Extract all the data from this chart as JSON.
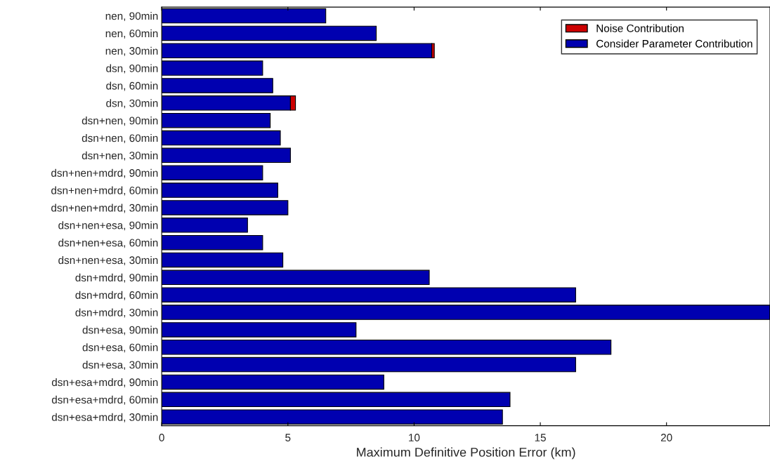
{
  "chart_data": {
    "type": "bar",
    "orientation": "horizontal",
    "stacked": true,
    "xlabel": "Maximum Definitive Position Error (km)",
    "categories": [
      "nen, 90min",
      "nen, 60min",
      "nen, 30min",
      "dsn, 90min",
      "dsn, 60min",
      "dsn, 30min",
      "dsn+nen, 90min",
      "dsn+nen, 60min",
      "dsn+nen, 30min",
      "dsn+nen+mdrd, 90min",
      "dsn+nen+mdrd, 60min",
      "dsn+nen+mdrd, 30min",
      "dsn+nen+esa, 90min",
      "dsn+nen+esa, 60min",
      "dsn+nen+esa, 30min",
      "dsn+mdrd, 90min",
      "dsn+mdrd, 60min",
      "dsn+mdrd, 30min",
      "dsn+esa, 90min",
      "dsn+esa, 60min",
      "dsn+esa, 30min",
      "dsn+esa+mdrd, 90min",
      "dsn+esa+mdrd, 60min",
      "dsn+esa+mdrd, 30min"
    ],
    "series": [
      {
        "name": "Consider Parameter Contribution",
        "color": "#0000b0",
        "values": [
          6.5,
          8.5,
          10.7,
          4.0,
          4.4,
          5.1,
          4.3,
          4.7,
          5.1,
          4.0,
          4.6,
          5.0,
          3.4,
          4.0,
          4.8,
          10.6,
          16.4,
          24.1,
          7.7,
          17.8,
          16.4,
          8.8,
          13.8,
          13.5
        ]
      },
      {
        "name": "Noise Contribution",
        "color": "#cc0000",
        "values": [
          null,
          null,
          0.1,
          null,
          null,
          0.2,
          null,
          null,
          null,
          null,
          null,
          null,
          null,
          null,
          null,
          null,
          null,
          null,
          null,
          null,
          null,
          null,
          null,
          null
        ]
      }
    ],
    "xlim": [
      0,
      24.1
    ],
    "xticks": [
      0,
      5,
      10,
      15,
      20
    ],
    "legend": "top right",
    "grid": false
  }
}
